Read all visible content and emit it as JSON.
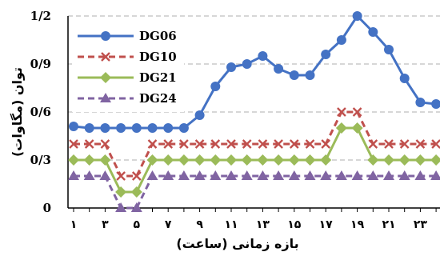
{
  "chart_data": {
    "type": "line",
    "x": [
      1,
      2,
      3,
      4,
      5,
      6,
      7,
      8,
      9,
      10,
      11,
      12,
      13,
      14,
      15,
      16,
      17,
      18,
      19,
      20,
      21,
      22,
      23,
      24
    ],
    "x_tick_labels": [
      "۱",
      "",
      "۳",
      "",
      "۵",
      "",
      "۷",
      "",
      "۹",
      "",
      "۱۱",
      "",
      "۱۳",
      "",
      "۱۵",
      "",
      "۱۷",
      "",
      "۱۹",
      "",
      "۲۱",
      "",
      "۲۳",
      ""
    ],
    "y_tick_labels": [
      "0",
      "0/3",
      "0/6",
      "0/9",
      "1/2"
    ],
    "ylim": [
      0,
      1.2
    ],
    "xlabel": "بازه زمانی (ساعت)",
    "ylabel": "توان (مگاوات)",
    "grid": "horizontal dashed",
    "legend_position": "top-left",
    "series": [
      {
        "name": "DG06",
        "color": "#4472C4",
        "marker": "circle",
        "dash": "solid",
        "values": [
          0.51,
          0.5,
          0.5,
          0.5,
          0.5,
          0.5,
          0.5,
          0.5,
          0.58,
          0.76,
          0.88,
          0.9,
          0.95,
          0.87,
          0.83,
          0.83,
          0.96,
          1.05,
          1.2,
          1.1,
          0.99,
          0.81,
          0.66,
          0.65
        ]
      },
      {
        "name": "DG10",
        "color": "#C0504D",
        "marker": "x",
        "dash": "dashed",
        "values": [
          0.4,
          0.4,
          0.4,
          0.2,
          0.2,
          0.4,
          0.4,
          0.4,
          0.4,
          0.4,
          0.4,
          0.4,
          0.4,
          0.4,
          0.4,
          0.4,
          0.4,
          0.6,
          0.6,
          0.4,
          0.4,
          0.4,
          0.4,
          0.4
        ]
      },
      {
        "name": "DG21",
        "color": "#9BBB59",
        "marker": "diamond",
        "dash": "solid",
        "values": [
          0.3,
          0.3,
          0.3,
          0.1,
          0.1,
          0.3,
          0.3,
          0.3,
          0.3,
          0.3,
          0.3,
          0.3,
          0.3,
          0.3,
          0.3,
          0.3,
          0.3,
          0.5,
          0.5,
          0.3,
          0.3,
          0.3,
          0.3,
          0.3
        ]
      },
      {
        "name": "DG24",
        "color": "#8064A2",
        "marker": "triangle",
        "dash": "dashed",
        "values": [
          0.2,
          0.2,
          0.2,
          0.0,
          0.0,
          0.2,
          0.2,
          0.2,
          0.2,
          0.2,
          0.2,
          0.2,
          0.2,
          0.2,
          0.2,
          0.2,
          0.2,
          0.2,
          0.2,
          0.2,
          0.2,
          0.2,
          0.2,
          0.2
        ]
      }
    ]
  }
}
